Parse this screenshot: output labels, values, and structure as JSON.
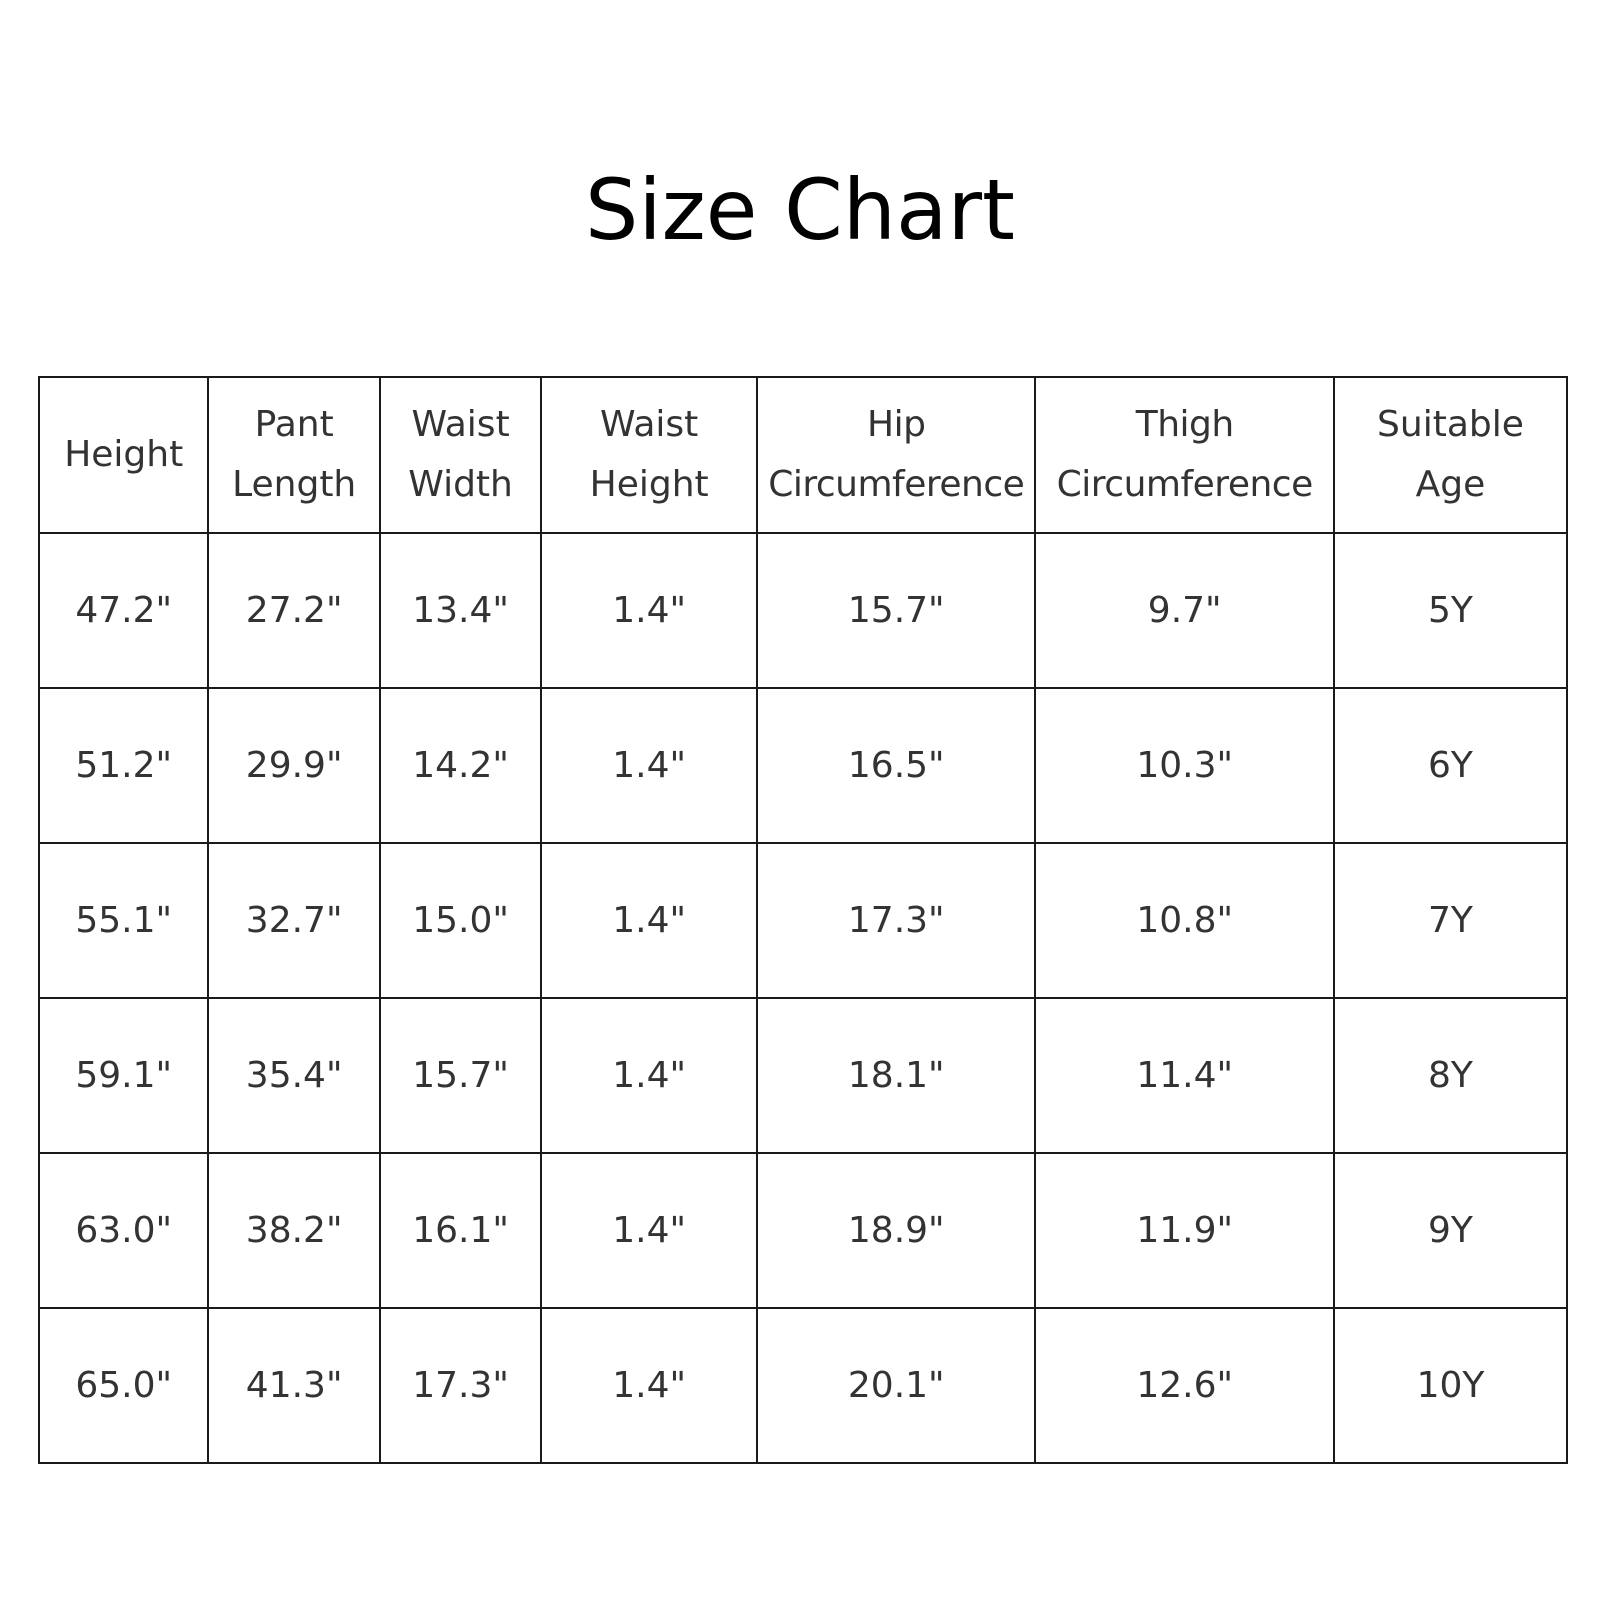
{
  "title": "Size Chart",
  "table": {
    "headers": [
      [
        "Height"
      ],
      [
        "Pant",
        "Length"
      ],
      [
        "Waist",
        "Width"
      ],
      [
        "Waist",
        "Height"
      ],
      [
        "Hip",
        "Circumference"
      ],
      [
        "Thigh",
        "Circumference"
      ],
      [
        "Suitable",
        "Age"
      ]
    ],
    "rows": [
      [
        "47.2\"",
        "27.2\"",
        "13.4\"",
        "1.4\"",
        "15.7\"",
        "9.7\"",
        "5Y"
      ],
      [
        "51.2\"",
        "29.9\"",
        "14.2\"",
        "1.4\"",
        "16.5\"",
        "10.3\"",
        "6Y"
      ],
      [
        "55.1\"",
        "32.7\"",
        "15.0\"",
        "1.4\"",
        "17.3\"",
        "10.8\"",
        "7Y"
      ],
      [
        "59.1\"",
        "35.4\"",
        "15.7\"",
        "1.4\"",
        "18.1\"",
        "11.4\"",
        "8Y"
      ],
      [
        "63.0\"",
        "38.2\"",
        "16.1\"",
        "1.4\"",
        "18.9\"",
        "11.9\"",
        "9Y"
      ],
      [
        "65.0\"",
        "41.3\"",
        "17.3\"",
        "1.4\"",
        "20.1\"",
        "12.6\"",
        "10Y"
      ]
    ]
  }
}
